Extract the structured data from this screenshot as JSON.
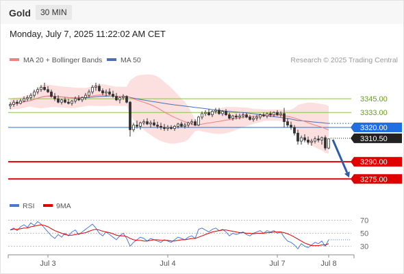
{
  "header": {
    "title": "Gold",
    "interval": "30 MIN"
  },
  "timestamp": "Monday, July 7, 2025 11:22:02 AM CET",
  "legend": {
    "ma20": "MA 20 + Bollinger Bands",
    "ma50": "MA 50",
    "credit": "Research © 2025 Trading Central"
  },
  "rsi_legend": {
    "rsi": "RSI",
    "ma9": "9MA"
  },
  "colors": {
    "ma20": "#f08080",
    "ma50": "#4a6fb5",
    "bands": "#fbd9d9",
    "candle": "#333333",
    "support": "#e00000",
    "current_price": "#222222",
    "pivot": "#1f6fe0",
    "resistance_line": "#8bc34a",
    "resistance_text": "#6a9b1e",
    "rsi": "#4a78d6",
    "rsi_ma": "#e00000",
    "projection_arrow": "#2d5da8"
  },
  "chart_data": [
    {
      "type": "candlestick",
      "title": "Gold 30 MIN",
      "x_ticks": [
        "Jul 3",
        "Jul 4",
        "Jul 7",
        "Jul 8"
      ],
      "ylim": [
        3262,
        3372
      ],
      "current_price": 3310.5,
      "levels": [
        {
          "label": "3345.00",
          "value": 3345.0,
          "kind": "resistance"
        },
        {
          "label": "3333.00",
          "value": 3333.0,
          "kind": "resistance"
        },
        {
          "label": "3320.00",
          "value": 3320.0,
          "kind": "pivot"
        },
        {
          "label": "3290.00",
          "value": 3290.0,
          "kind": "support"
        },
        {
          "label": "3275.00",
          "value": 3275.0,
          "kind": "support"
        }
      ],
      "projection": {
        "from": 3310.5,
        "to": 3275.0
      },
      "series": [
        {
          "name": "MA 20 + Bollinger Bands",
          "kind": "ma20_bands"
        },
        {
          "name": "MA 50",
          "kind": "ma50"
        }
      ],
      "candles": [
        [
          3339,
          3342,
          3336,
          3340
        ],
        [
          3340,
          3344,
          3338,
          3342
        ],
        [
          3342,
          3344,
          3339,
          3341
        ],
        [
          3341,
          3345,
          3340,
          3343
        ],
        [
          3343,
          3347,
          3342,
          3345
        ],
        [
          3345,
          3348,
          3343,
          3346
        ],
        [
          3346,
          3350,
          3344,
          3348
        ],
        [
          3348,
          3353,
          3346,
          3351
        ],
        [
          3351,
          3355,
          3349,
          3353
        ],
        [
          3353,
          3357,
          3351,
          3355
        ],
        [
          3355,
          3359,
          3352,
          3353
        ],
        [
          3353,
          3356,
          3350,
          3351
        ],
        [
          3351,
          3353,
          3346,
          3347
        ],
        [
          3347,
          3350,
          3343,
          3345
        ],
        [
          3345,
          3348,
          3341,
          3342
        ],
        [
          3342,
          3345,
          3340,
          3344
        ],
        [
          3344,
          3346,
          3341,
          3342
        ],
        [
          3342,
          3345,
          3340,
          3341
        ],
        [
          3341,
          3344,
          3339,
          3343
        ],
        [
          3343,
          3347,
          3341,
          3345
        ],
        [
          3345,
          3348,
          3343,
          3344
        ],
        [
          3344,
          3347,
          3342,
          3346
        ],
        [
          3346,
          3350,
          3344,
          3348
        ],
        [
          3348,
          3353,
          3346,
          3351
        ],
        [
          3351,
          3357,
          3349,
          3355
        ],
        [
          3355,
          3359,
          3352,
          3356
        ],
        [
          3356,
          3358,
          3351,
          3352
        ],
        [
          3352,
          3354,
          3348,
          3350
        ],
        [
          3350,
          3353,
          3347,
          3351
        ],
        [
          3351,
          3354,
          3348,
          3349
        ],
        [
          3349,
          3352,
          3346,
          3347
        ],
        [
          3347,
          3350,
          3343,
          3344
        ],
        [
          3344,
          3347,
          3341,
          3346
        ],
        [
          3346,
          3349,
          3344,
          3347
        ],
        [
          3347,
          3348,
          3341,
          3342
        ],
        [
          3342,
          3343,
          3312,
          3318
        ],
        [
          3318,
          3324,
          3316,
          3322
        ],
        [
          3322,
          3326,
          3319,
          3321
        ],
        [
          3321,
          3325,
          3318,
          3324
        ],
        [
          3324,
          3327,
          3322,
          3325
        ],
        [
          3325,
          3328,
          3322,
          3323
        ],
        [
          3323,
          3326,
          3320,
          3324
        ],
        [
          3324,
          3327,
          3321,
          3322
        ],
        [
          3322,
          3325,
          3319,
          3321
        ],
        [
          3321,
          3324,
          3318,
          3320
        ],
        [
          3320,
          3323,
          3317,
          3319
        ],
        [
          3319,
          3322,
          3317,
          3320
        ],
        [
          3320,
          3322,
          3318,
          3319
        ],
        [
          3319,
          3322,
          3317,
          3321
        ],
        [
          3321,
          3324,
          3319,
          3323
        ],
        [
          3323,
          3325,
          3320,
          3321
        ],
        [
          3321,
          3324,
          3319,
          3322
        ],
        [
          3322,
          3325,
          3320,
          3324
        ],
        [
          3324,
          3327,
          3322,
          3325
        ],
        [
          3325,
          3327,
          3321,
          3322
        ],
        [
          3322,
          3330,
          3321,
          3329
        ],
        [
          3329,
          3334,
          3327,
          3332
        ],
        [
          3332,
          3335,
          3330,
          3333
        ],
        [
          3333,
          3336,
          3330,
          3331
        ],
        [
          3331,
          3335,
          3329,
          3334
        ],
        [
          3334,
          3337,
          3332,
          3335
        ],
        [
          3335,
          3337,
          3331,
          3332
        ],
        [
          3332,
          3335,
          3330,
          3334
        ],
        [
          3334,
          3336,
          3330,
          3331
        ],
        [
          3331,
          3333,
          3327,
          3328
        ],
        [
          3328,
          3331,
          3326,
          3330
        ],
        [
          3330,
          3332,
          3327,
          3329
        ],
        [
          3329,
          3332,
          3327,
          3330
        ],
        [
          3330,
          3333,
          3328,
          3331
        ],
        [
          3331,
          3333,
          3328,
          3329
        ],
        [
          3329,
          3331,
          3326,
          3327
        ],
        [
          3327,
          3330,
          3325,
          3328
        ],
        [
          3328,
          3331,
          3326,
          3329
        ],
        [
          3329,
          3332,
          3327,
          3331
        ],
        [
          3331,
          3333,
          3329,
          3330
        ],
        [
          3330,
          3333,
          3328,
          3332
        ],
        [
          3332,
          3334,
          3329,
          3331
        ],
        [
          3331,
          3334,
          3329,
          3333
        ],
        [
          3333,
          3335,
          3330,
          3331
        ],
        [
          3331,
          3334,
          3329,
          3332
        ],
        [
          3332,
          3337,
          3320,
          3325
        ],
        [
          3325,
          3328,
          3320,
          3322
        ],
        [
          3322,
          3325,
          3318,
          3320
        ],
        [
          3320,
          3322,
          3313,
          3315
        ],
        [
          3315,
          3318,
          3305,
          3308
        ],
        [
          3308,
          3313,
          3305,
          3311
        ],
        [
          3311,
          3314,
          3307,
          3309
        ],
        [
          3309,
          3312,
          3305,
          3307
        ],
        [
          3307,
          3310,
          3304,
          3308
        ],
        [
          3308,
          3312,
          3306,
          3310
        ],
        [
          3310,
          3313,
          3307,
          3309
        ],
        [
          3309,
          3312,
          3305,
          3311
        ],
        [
          3311,
          3313,
          3300,
          3302
        ],
        [
          3302,
          3310,
          3301,
          3310
        ]
      ]
    },
    {
      "type": "line",
      "title": "RSI",
      "yticks": [
        30,
        50,
        70
      ],
      "ylim": [
        20,
        80
      ],
      "series": [
        {
          "name": "RSI",
          "values": [
            55,
            58,
            54,
            60,
            63,
            59,
            66,
            62,
            68,
            64,
            58,
            52,
            46,
            42,
            48,
            44,
            50,
            46,
            52,
            55,
            48,
            52,
            56,
            60,
            64,
            58,
            50,
            46,
            52,
            48,
            44,
            40,
            46,
            50,
            42,
            30,
            36,
            40,
            44,
            42,
            38,
            42,
            40,
            38,
            36,
            40,
            38,
            36,
            40,
            44,
            42,
            40,
            44,
            46,
            42,
            56,
            58,
            55,
            52,
            56,
            58,
            54,
            56,
            52,
            46,
            50,
            48,
            50,
            52,
            48,
            46,
            50,
            52,
            54,
            50,
            54,
            52,
            54,
            50,
            52,
            44,
            38,
            36,
            32,
            26,
            34,
            30,
            28,
            32,
            36,
            34,
            38,
            30,
            40
          ]
        },
        {
          "name": "9MA",
          "values": [
            55,
            56,
            56,
            57,
            58,
            58,
            60,
            61,
            62,
            63,
            62,
            60,
            57,
            54,
            52,
            50,
            48,
            47,
            47,
            48,
            49,
            50,
            51,
            53,
            55,
            56,
            55,
            53,
            52,
            51,
            49,
            47,
            46,
            46,
            45,
            42,
            40,
            39,
            39,
            38,
            38,
            39,
            40,
            40,
            39,
            39,
            39,
            38,
            38,
            39,
            40,
            40,
            41,
            42,
            42,
            44,
            46,
            48,
            50,
            52,
            53,
            54,
            55,
            55,
            54,
            53,
            52,
            51,
            51,
            50,
            50,
            49,
            50,
            50,
            50,
            51,
            51,
            52,
            52,
            52,
            51,
            49,
            47,
            44,
            41,
            38,
            35,
            33,
            31,
            31,
            31,
            32,
            32,
            34
          ]
        }
      ]
    }
  ]
}
